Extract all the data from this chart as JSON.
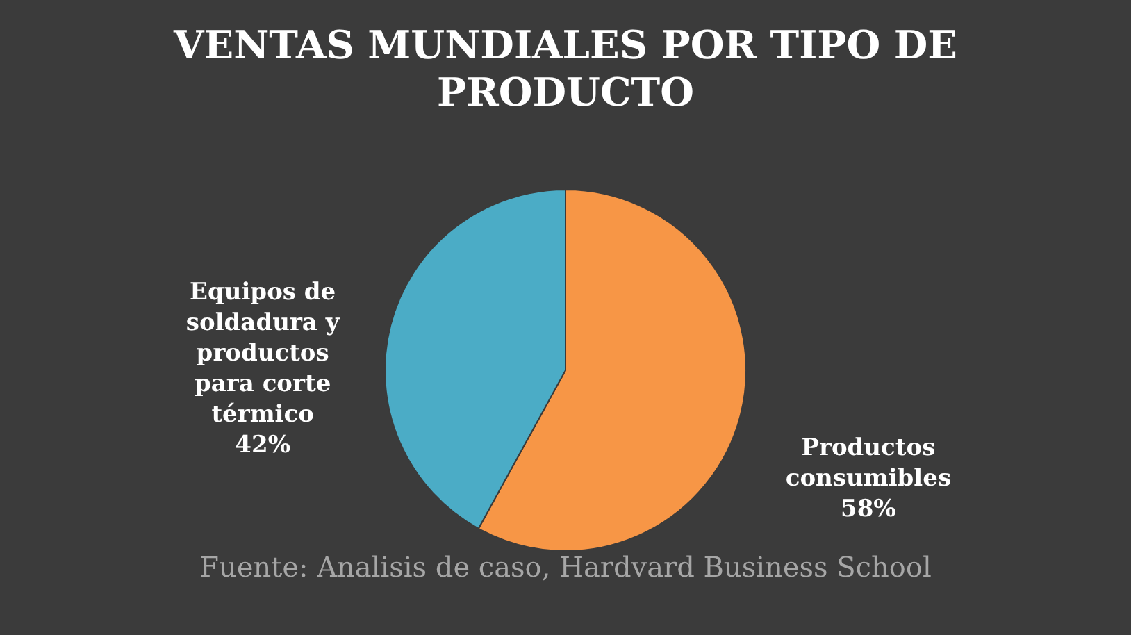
{
  "chart_data": {
    "type": "pie",
    "title": "VENTAS MUNDIALES POR TIPO DE PRODUCTO",
    "categories": [
      "Productos consumibles",
      "Equipos de soldadura y productos para corte térmico"
    ],
    "values": [
      58,
      42
    ],
    "colors": [
      "#f79646",
      "#4bacc6"
    ],
    "value_labels": [
      "58%",
      "42%"
    ],
    "annotations": [
      "Fuente: Analisis de caso, Hardvard Business School"
    ],
    "legend": false
  }
}
